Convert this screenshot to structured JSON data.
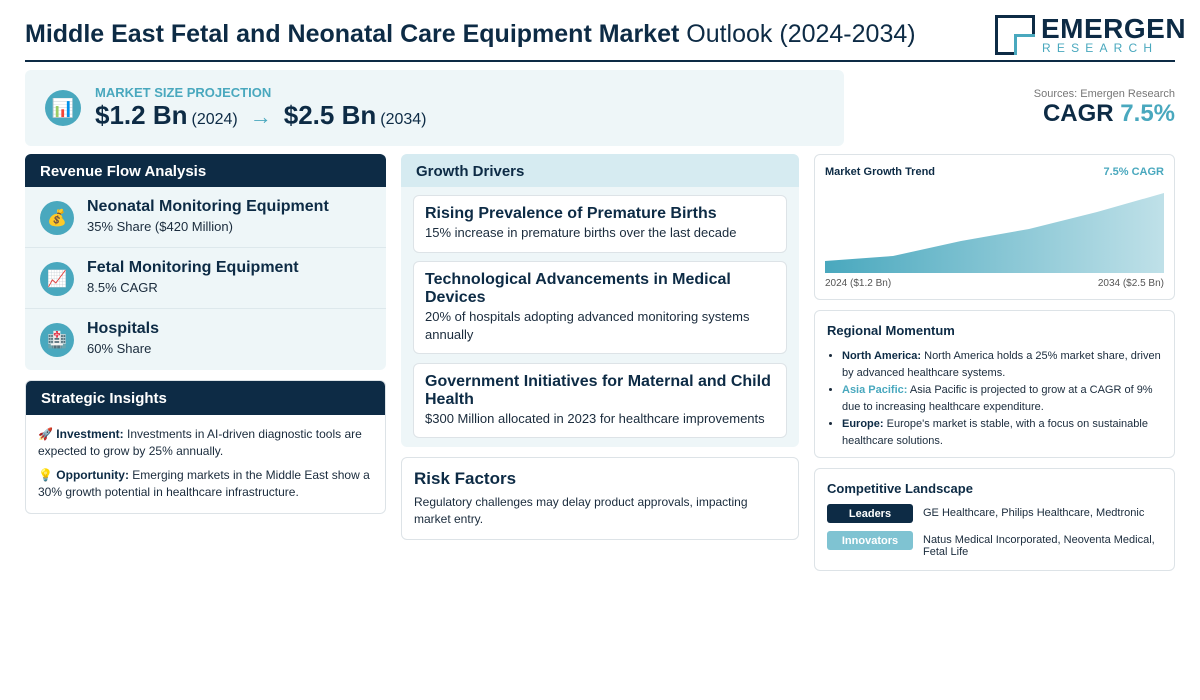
{
  "header": {
    "title_bold": "Middle East Fetal and Neonatal Care Equipment Market",
    "title_light": "Outlook (2024-2034)",
    "logo_name": "EMERGEN",
    "logo_sub": "RESEARCH"
  },
  "projection": {
    "icon": "chart-icon",
    "label": "MARKET SIZE PROJECTION",
    "start_value": "$1.2 Bn",
    "start_year": "(2024)",
    "arrow": "→",
    "end_value": "$2.5 Bn",
    "end_year": "(2034)"
  },
  "sources": {
    "text": "Sources: Emergen Research",
    "cagr_label": "CAGR",
    "cagr_value": "7.5%"
  },
  "revenue_flow": {
    "heading": "Revenue Flow Analysis",
    "items": [
      {
        "icon": "money-bag-icon",
        "title": "Neonatal Monitoring Equipment",
        "sub": "35% Share ($420 Million)"
      },
      {
        "icon": "trend-chart-icon",
        "title": "Fetal Monitoring Equipment",
        "sub": "8.5% CAGR"
      },
      {
        "icon": "hospital-icon",
        "title": "Hospitals",
        "sub": "60% Share"
      }
    ]
  },
  "strategic": {
    "heading": "Strategic Insights",
    "items": [
      {
        "emoji": "🚀",
        "label": "Investment:",
        "text": "Investments in AI-driven diagnostic tools are expected to grow by 25% annually."
      },
      {
        "emoji": "💡",
        "label": "Opportunity:",
        "text": "Emerging markets in the Middle East show a 30% growth potential in healthcare infrastructure."
      }
    ]
  },
  "growth_drivers": {
    "heading": "Growth Drivers",
    "items": [
      {
        "title": "Rising Prevalence of Premature Births",
        "sub": "15% increase in premature births over the last decade"
      },
      {
        "title": "Technological Advancements in Medical Devices",
        "sub": "20% of hospitals adopting advanced monitoring systems annually"
      },
      {
        "title": "Government Initiatives for Maternal and Child Health",
        "sub": "$300 Million allocated in 2023 for healthcare improvements"
      }
    ]
  },
  "risk": {
    "heading": "Risk Factors",
    "text": "Regulatory challenges may delay product approvals, impacting market entry."
  },
  "trend": {
    "title": "Market Growth Trend",
    "cagr": "7.5% CAGR",
    "left_label": "2024 ($1.2 Bn)",
    "right_label": "2034 ($2.5 Bn)",
    "color": "#49a8be"
  },
  "regional": {
    "heading": "Regional Momentum",
    "items": [
      {
        "name": "North America:",
        "text": "North America holds a 25% market share, driven by advanced healthcare systems.",
        "accent": false
      },
      {
        "name": "Asia Pacific:",
        "text": "Asia Pacific is projected to grow at a CAGR of 9% due to increasing healthcare expenditure.",
        "accent": true
      },
      {
        "name": "Europe:",
        "text": "Europe's market is stable, with a focus on sustainable healthcare solutions.",
        "accent": false
      }
    ]
  },
  "competitive": {
    "heading": "Competitive Landscape",
    "leaders_label": "Leaders",
    "leaders_text": "GE Healthcare, Philips Healthcare, Medtronic",
    "innovators_label": "Innovators",
    "innovators_text": "Natus Medical Incorporated, Neoventa Medical, Fetal Life"
  },
  "colors": {
    "navy": "#0d2b45",
    "accent": "#49a8be",
    "panel_bg": "#eef6f8"
  }
}
